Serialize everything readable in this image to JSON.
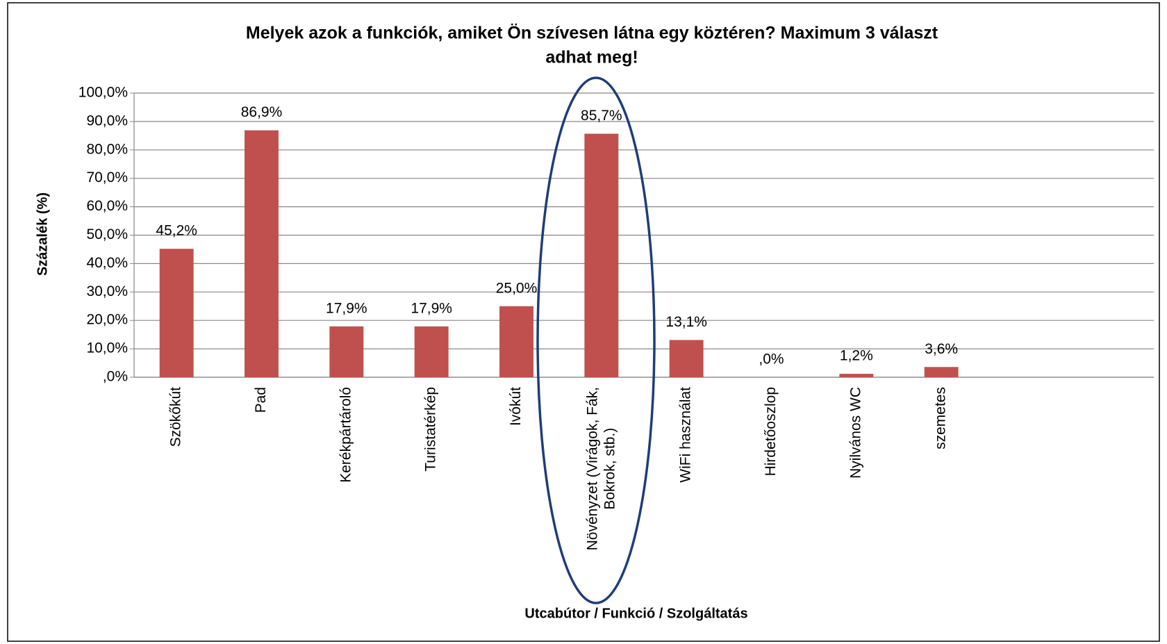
{
  "chart_data": {
    "type": "bar",
    "title": [
      "Melyek azok a funkciók, amiket Ön szívesen látna egy köztéren? Maximum 3 választ",
      "adhat meg!"
    ],
    "x_label": "Utcabútor / Funkció / Szolgáltatás",
    "y_label": "Százalék (%)",
    "categories": [
      "Szökőkút",
      "Pad",
      "Kerékpártároló",
      "Turistatérkép",
      "Ivókút",
      "Növényzet (Virágok, Fák,\nBokrok, stb.)",
      "WiFi használat",
      "Hirdetőoszlop",
      "Nyilvános WC",
      "szemetes",
      null,
      null
    ],
    "values": [
      45.2,
      86.9,
      17.9,
      17.9,
      25.0,
      85.7,
      13.1,
      0,
      1.2,
      3.6,
      null,
      null
    ],
    "value_labels": [
      "45,2%",
      "86,9%",
      "17,9%",
      "17,9%",
      "25,0%",
      "85,7%",
      "13,1%",
      ",0%",
      "1,2%",
      "3,6%",
      null,
      null
    ],
    "color": "#c0504d",
    "ylim": [
      0,
      100
    ],
    "yticks": [
      {
        "value": 0,
        "label": ",0%"
      },
      {
        "value": 10,
        "label": "10,0%"
      },
      {
        "value": 20,
        "label": "20,0%"
      },
      {
        "value": 30,
        "label": "30,0%"
      },
      {
        "value": 40,
        "label": "40,0%"
      },
      {
        "value": 50,
        "label": "50,0%"
      },
      {
        "value": 60,
        "label": "60,0%"
      },
      {
        "value": 70,
        "label": "70,0%"
      },
      {
        "value": 80,
        "label": "80,0%"
      },
      {
        "value": 90,
        "label": "90,0%"
      },
      {
        "value": 100,
        "label": "100,0%"
      }
    ],
    "grid": true
  }
}
